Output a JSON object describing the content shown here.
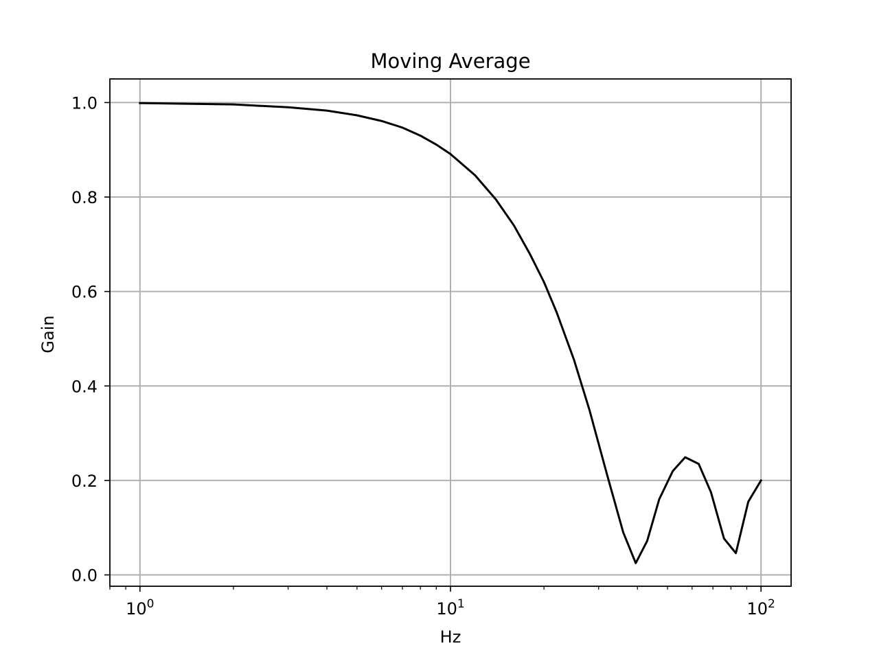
{
  "chart_data": {
    "type": "line",
    "title": "Moving Average",
    "xlabel": "Hz",
    "ylabel": "Gain",
    "xscale": "log",
    "xlim": [
      0.8,
      125
    ],
    "ylim": [
      -0.024,
      1.05
    ],
    "grid": true,
    "x_ticks": [
      {
        "value": 1,
        "base": "10",
        "exp": "0"
      },
      {
        "value": 10,
        "base": "10",
        "exp": "1"
      },
      {
        "value": 100,
        "base": "10",
        "exp": "2"
      }
    ],
    "y_ticks": [
      {
        "value": 0.0,
        "label": "0.0"
      },
      {
        "value": 0.2,
        "label": "0.2"
      },
      {
        "value": 0.4,
        "label": "0.4"
      },
      {
        "value": 0.6,
        "label": "0.6"
      },
      {
        "value": 0.8,
        "label": "0.8"
      },
      {
        "value": 1.0,
        "label": "1.0"
      }
    ],
    "series": [
      {
        "color": "#000000",
        "x": [
          1,
          2,
          3,
          4,
          5,
          6,
          7,
          8,
          9,
          10,
          12,
          14,
          16,
          18,
          20,
          22,
          25,
          28,
          32,
          36,
          39.5,
          43,
          47,
          52,
          57,
          63,
          69,
          76,
          83,
          91,
          100
        ],
        "y": [
          0.999,
          0.996,
          0.99,
          0.983,
          0.973,
          0.961,
          0.947,
          0.93,
          0.911,
          0.891,
          0.846,
          0.795,
          0.74,
          0.68,
          0.62,
          0.555,
          0.455,
          0.35,
          0.21,
          0.09,
          0.025,
          0.072,
          0.16,
          0.22,
          0.249,
          0.235,
          0.175,
          0.077,
          0.046,
          0.155,
          0.2
        ]
      }
    ]
  }
}
